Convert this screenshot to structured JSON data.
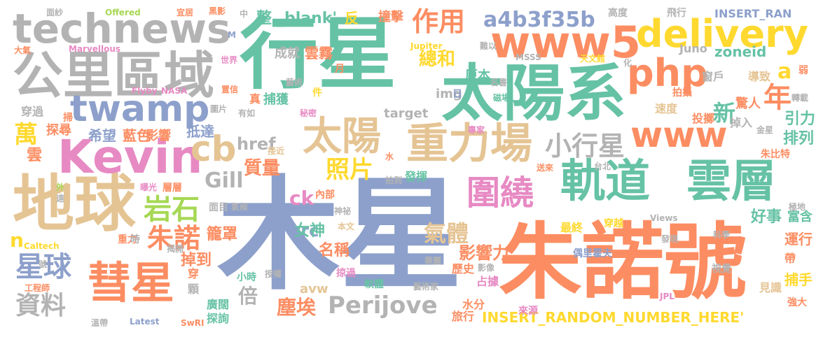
{
  "palette": {
    "blue": "#8da0cb",
    "orange": "#fc8d62",
    "green": "#66c2a5",
    "pink": "#e78ac3",
    "lime": "#a6d854",
    "yellow": "#ffd92f",
    "tan": "#e5c494",
    "gray": "#b3b3b3"
  },
  "words": [
    {
      "text": "木星",
      "color": "#8da0cb"
    },
    {
      "text": "朱諾號",
      "color": "#fc8d62"
    },
    {
      "text": "行星",
      "color": "#66c2a5"
    },
    {
      "text": "太陽系",
      "color": "#66c2a5"
    },
    {
      "text": "地球",
      "color": "#e5c494"
    },
    {
      "text": "公里區域",
      "color": "#b3b3b3"
    },
    {
      "text": "technews",
      "color": "#b3b3b3"
    },
    {
      "text": "www5",
      "color": "#fc8d62"
    },
    {
      "text": "delivery",
      "color": "#ffd92f"
    },
    {
      "text": "php",
      "color": "#fc8d62"
    },
    {
      "text": "Kevin",
      "color": "#e78ac3"
    },
    {
      "text": "twamp",
      "color": "#8da0cb"
    },
    {
      "text": "重力場",
      "color": "#e5c494"
    },
    {
      "text": "軌道",
      "color": "#66c2a5"
    },
    {
      "text": "雲層",
      "color": "#66c2a5"
    },
    {
      "text": "彗星",
      "color": "#fc8d62"
    },
    {
      "text": "www",
      "color": "#fc8d62"
    },
    {
      "text": "cb",
      "color": "#e5c494"
    },
    {
      "text": "太陽",
      "color": "#e5c494"
    },
    {
      "text": "圍繞",
      "color": "#e78ac3"
    },
    {
      "text": "Perijove",
      "color": "#b3b3b3"
    },
    {
      "text": "作用",
      "color": "#fc8d62"
    },
    {
      "text": "a4b3f35b",
      "color": "#8da0cb"
    },
    {
      "text": "小行星",
      "color": "#b3b3b3"
    },
    {
      "text": "岩石",
      "color": "#a6d854"
    },
    {
      "text": "朱諾",
      "color": "#fc8d62"
    },
    {
      "text": "星球",
      "color": "#8da0cb"
    },
    {
      "text": "資料",
      "color": "#b3b3b3"
    },
    {
      "text": "萬",
      "color": "#ffd92f"
    },
    {
      "text": "年",
      "color": "#fc8d62"
    },
    {
      "text": "照片",
      "color": "#ffd92f"
    },
    {
      "text": "Gill",
      "color": "#b3b3b3"
    },
    {
      "text": "氣體",
      "color": "#e5c494"
    },
    {
      "text": "塵埃",
      "color": "#fc8d62"
    },
    {
      "text": "新",
      "color": "#66c2a5"
    },
    {
      "text": "總和",
      "color": "#ffd92f"
    },
    {
      "text": "zoneid",
      "color": "#66c2a5"
    },
    {
      "text": "a",
      "color": "#ffd92f"
    },
    {
      "text": "ck",
      "color": "#e78ac3"
    },
    {
      "text": "src",
      "color": "#8da0cb"
    },
    {
      "text": "INSERT_RANDOM_NUMBER_HERE'",
      "color": "#ffd92f"
    },
    {
      "text": "href",
      "color": "#b3b3b3"
    },
    {
      "text": "質量",
      "color": "#fc8d62"
    },
    {
      "text": "倍",
      "color": "#b3b3b3"
    },
    {
      "text": "n",
      "color": "#ffd92f"
    },
    {
      "text": "影響力",
      "color": "#fc8d62"
    },
    {
      "text": "女神",
      "color": "#66c2a5"
    },
    {
      "text": "名稱",
      "color": "#fc8d62"
    },
    {
      "text": "掉到",
      "color": "#fc8d62"
    },
    {
      "text": "籠罩",
      "color": "#fc8d62"
    },
    {
      "text": "排列",
      "color": "#66c2a5"
    },
    {
      "text": "引力",
      "color": "#66c2a5"
    },
    {
      "text": "驚人",
      "color": "#fc8d62"
    },
    {
      "text": "好事",
      "color": "#66c2a5"
    },
    {
      "text": "富含",
      "color": "#66c2a5"
    },
    {
      "text": "運行",
      "color": "#fc8d62"
    },
    {
      "text": "捕手",
      "color": "#ffd92f"
    },
    {
      "text": "藍色",
      "color": "#fc8d62"
    },
    {
      "text": "希望",
      "color": "#8da0cb"
    },
    {
      "text": "抵達",
      "color": "#8da0cb"
    },
    {
      "text": "影響",
      "color": "#fc8d62"
    },
    {
      "text": "雲",
      "color": "#fc8d62"
    },
    {
      "text": "探尋",
      "color": "#fc8d62"
    },
    {
      "text": "整",
      "color": "#66c2a5"
    },
    {
      "text": "_blank'",
      "color": "#66c2a5"
    },
    {
      "text": "反",
      "color": "#ffd92f"
    },
    {
      "text": "撞擊",
      "color": "#fc8d62"
    },
    {
      "text": "成就",
      "color": "#b3b3b3"
    },
    {
      "text": "雲霧",
      "color": "#fc8d62"
    },
    {
      "text": "捕獲",
      "color": "#66c2a5"
    },
    {
      "text": "img",
      "color": "#b3b3b3"
    },
    {
      "text": "target",
      "color": "#b3b3b3"
    },
    {
      "text": "原本",
      "color": "#66c2a5"
    },
    {
      "text": "avw",
      "color": "#e5c494"
    },
    {
      "text": "水分",
      "color": "#fc8d62"
    },
    {
      "text": "旅行",
      "color": "#fc8d62"
    },
    {
      "text": "歷史",
      "color": "#fc8d62"
    },
    {
      "text": "占據",
      "color": "#e78ac3"
    },
    {
      "text": "發揮",
      "color": "#66c2a5"
    },
    {
      "text": "探詢",
      "color": "#66c2a5"
    },
    {
      "text": "廣闊",
      "color": "#66c2a5"
    },
    {
      "text": "穿過",
      "color": "#b3b3b3"
    },
    {
      "text": "最終",
      "color": "#ffd92f"
    },
    {
      "text": "見識",
      "color": "#e5c494"
    },
    {
      "text": "帶",
      "color": "#fc8d62"
    },
    {
      "text": "層層",
      "color": "#fc8d62"
    },
    {
      "text": "內部",
      "color": "#fc8d62"
    },
    {
      "text": "面目",
      "color": "#b3b3b3"
    },
    {
      "text": "導致",
      "color": "#e5c494"
    },
    {
      "text": "窗戶",
      "color": "#b3b3b3"
    },
    {
      "text": "速度",
      "color": "#e5c494"
    },
    {
      "text": "投擲",
      "color": "#fc8d62"
    },
    {
      "text": "掉入",
      "color": "#b3b3b3"
    },
    {
      "text": "朱比特",
      "color": "#fc8d62"
    },
    {
      "text": "Juno",
      "color": "#b3b3b3"
    },
    {
      "text": "INSERT_RAN",
      "color": "#8da0cb"
    },
    {
      "text": "飛行",
      "color": "#b3b3b3"
    },
    {
      "text": "高度",
      "color": "#b3b3b3"
    },
    {
      "text": "弱",
      "color": "#fc8d62"
    },
    {
      "text": "轉載",
      "color": "#b3b3b3"
    },
    {
      "text": "拍攝",
      "color": "#fc8d62"
    },
    {
      "text": "穿越",
      "color": "#ffd92f"
    },
    {
      "text": "發現",
      "color": "#b3b3b3"
    },
    {
      "text": "科學",
      "color": "#b3b3b3"
    },
    {
      "text": "偶里霍夫",
      "color": "#8da0cb"
    },
    {
      "text": "視覺",
      "color": "#b3b3b3"
    },
    {
      "text": "強大",
      "color": "#fc8d62"
    },
    {
      "text": "JPL",
      "color": "#e78ac3"
    },
    {
      "text": "來源",
      "color": "#e78ac3"
    },
    {
      "text": "藝術家",
      "color": "#b3b3b3"
    },
    {
      "text": "軟體",
      "color": "#66c2a5"
    },
    {
      "text": "掠過",
      "color": "#e78ac3"
    },
    {
      "text": "授權",
      "color": "#b3b3b3"
    },
    {
      "text": "小時",
      "color": "#66c2a5"
    },
    {
      "text": "穿",
      "color": "#fc8d62"
    },
    {
      "text": "顆",
      "color": "#b3b3b3"
    },
    {
      "text": "重力",
      "color": "#fc8d62"
    },
    {
      "text": "揭開",
      "color": "#b3b3b3"
    },
    {
      "text": "號",
      "color": "#b3b3b3"
    },
    {
      "text": "時",
      "color": "#b3b3b3"
    },
    {
      "text": "曝光",
      "color": "#e78ac3"
    },
    {
      "text": "外",
      "color": "#a6d854"
    },
    {
      "text": "遠",
      "color": "#b3b3b3"
    },
    {
      "text": "Caltech",
      "color": "#ffd92f"
    },
    {
      "text": "工程師",
      "color": "#fc8d62"
    },
    {
      "text": "溫帶",
      "color": "#b3b3b3"
    },
    {
      "text": "Latest",
      "color": "#8da0cb"
    },
    {
      "text": "SwRI",
      "color": "#fc8d62"
    },
    {
      "text": "華麗",
      "color": "#b3b3b3"
    },
    {
      "text": "影像",
      "color": "#b3b3b3"
    },
    {
      "text": "極地",
      "color": "#b3b3b3"
    },
    {
      "text": "Views",
      "color": "#b3b3b3"
    },
    {
      "text": "台北",
      "color": "#b3b3b3"
    },
    {
      "text": "送來",
      "color": "#fc8d62"
    },
    {
      "text": "水",
      "color": "#fc8d62"
    },
    {
      "text": "拍到",
      "color": "#b3b3b3"
    },
    {
      "text": "接近",
      "color": "#e5c494"
    },
    {
      "text": "本文",
      "color": "#e5c494"
    },
    {
      "text": "神祕",
      "color": "#b3b3b3"
    },
    {
      "text": "氣候",
      "color": "#b3b3b3"
    },
    {
      "text": "專家",
      "color": "#e78ac3"
    },
    {
      "text": "金星",
      "color": "#b3b3b3"
    },
    {
      "text": "磁場",
      "color": "#66c2a5"
    },
    {
      "text": "天文館",
      "color": "#ffd92f"
    },
    {
      "text": "MSSS",
      "color": "#b3b3b3"
    },
    {
      "text": "Jupiter",
      "color": "#ffd92f"
    },
    {
      "text": "難以",
      "color": "#b3b3b3"
    },
    {
      "text": "化",
      "color": "#b3b3b3"
    },
    {
      "text": "名書",
      "color": "#b3b3b3"
    },
    {
      "text": "日",
      "color": "#8da0cb"
    },
    {
      "text": "件",
      "color": "#ffd92f"
    },
    {
      "text": "藝術",
      "color": "#b3b3b3"
    },
    {
      "text": "月",
      "color": "#fc8d62"
    },
    {
      "text": "秘密",
      "color": "#e78ac3"
    },
    {
      "text": "有如",
      "color": "#b3b3b3"
    },
    {
      "text": "真",
      "color": "#fc8d62"
    },
    {
      "text": "圖片",
      "color": "#b3b3b3"
    },
    {
      "text": "置信",
      "color": "#fc8d62"
    },
    {
      "text": "世界",
      "color": "#e78ac3"
    },
    {
      "text": "Flyby",
      "color": "#e78ac3"
    },
    {
      "text": "NASA",
      "color": "#e78ac3"
    },
    {
      "text": "掃",
      "color": "#fc8d62"
    },
    {
      "text": "Marvellous",
      "color": "#e78ac3"
    },
    {
      "text": "大氣",
      "color": "#fc8d62"
    },
    {
      "text": "M",
      "color": "#8da0cb"
    },
    {
      "text": "中",
      "color": "#b3b3b3"
    },
    {
      "text": "黑影",
      "color": "#fc8d62"
    },
    {
      "text": "宜居",
      "color": "#fc8d62"
    },
    {
      "text": "Offered",
      "color": "#a6d854"
    },
    {
      "text": "面紗",
      "color": "#b3b3b3"
    }
  ]
}
